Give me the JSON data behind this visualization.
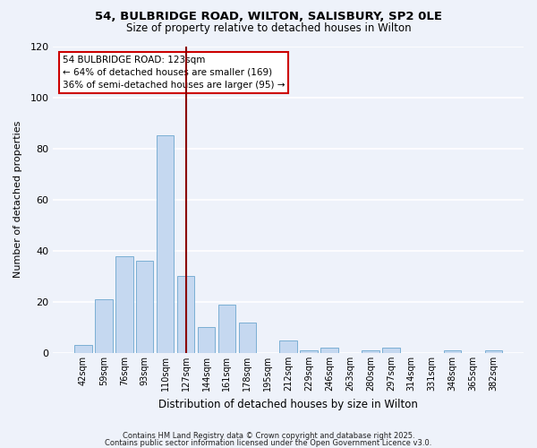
{
  "title": "54, BULBRIDGE ROAD, WILTON, SALISBURY, SP2 0LE",
  "subtitle": "Size of property relative to detached houses in Wilton",
  "xlabel": "Distribution of detached houses by size in Wilton",
  "ylabel": "Number of detached properties",
  "bar_labels": [
    "42sqm",
    "59sqm",
    "76sqm",
    "93sqm",
    "110sqm",
    "127sqm",
    "144sqm",
    "161sqm",
    "178sqm",
    "195sqm",
    "212sqm",
    "229sqm",
    "246sqm",
    "263sqm",
    "280sqm",
    "297sqm",
    "314sqm",
    "331sqm",
    "348sqm",
    "365sqm",
    "382sqm"
  ],
  "bar_values": [
    3,
    21,
    38,
    36,
    85,
    30,
    10,
    19,
    12,
    0,
    5,
    1,
    2,
    0,
    1,
    2,
    0,
    0,
    1,
    0,
    1
  ],
  "bar_color": "#c5d8f0",
  "bar_edge_color": "#7bafd4",
  "vline_color": "#8b0000",
  "vline_x": 5.0,
  "annotation_title": "54 BULBRIDGE ROAD: 123sqm",
  "annotation_line1": "← 64% of detached houses are smaller (169)",
  "annotation_line2": "36% of semi-detached houses are larger (95) →",
  "annotation_box_color": "#cc0000",
  "ylim": [
    0,
    120
  ],
  "yticks": [
    0,
    20,
    40,
    60,
    80,
    100,
    120
  ],
  "background_color": "#eef2fa",
  "grid_color": "#ffffff",
  "footer1": "Contains HM Land Registry data © Crown copyright and database right 2025.",
  "footer2": "Contains public sector information licensed under the Open Government Licence v3.0."
}
